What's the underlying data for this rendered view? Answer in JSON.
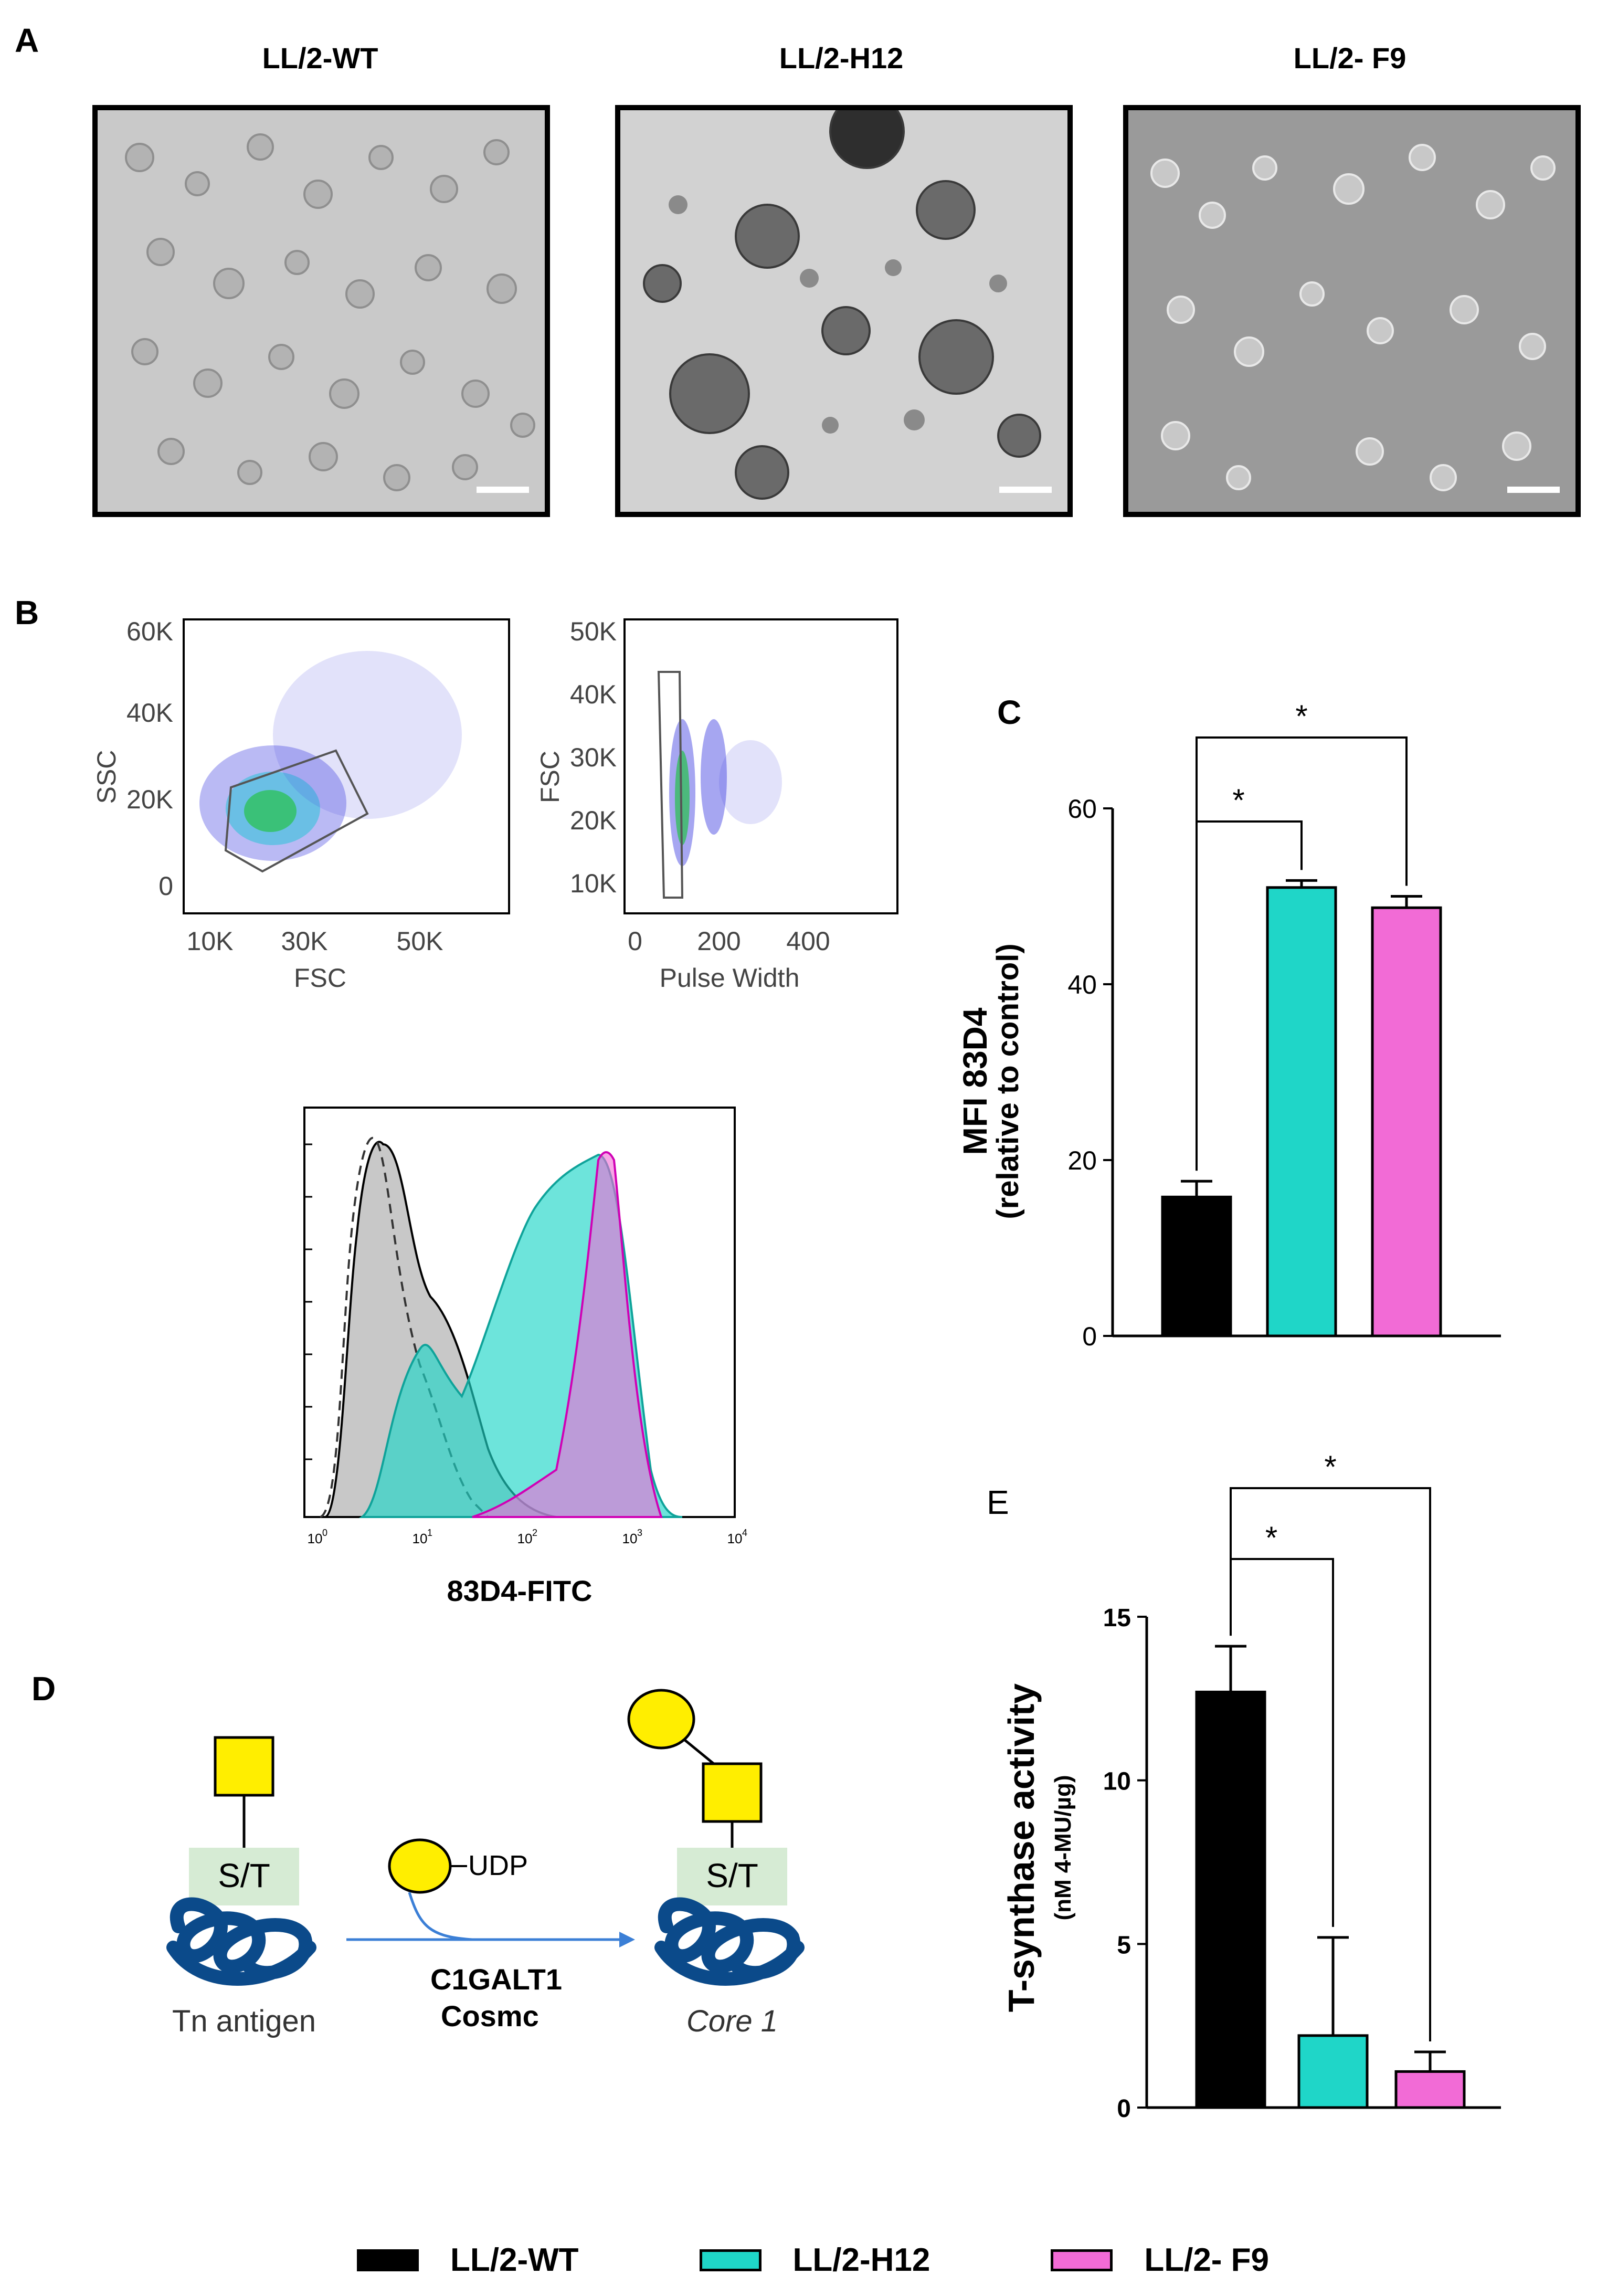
{
  "panels": {
    "a": "A",
    "b": "B",
    "c": "C",
    "d": "D",
    "e": "E"
  },
  "micrographs": [
    {
      "title": "LL/2-WT"
    },
    {
      "title": "LL/2-H12"
    },
    {
      "title": "LL/2- F9"
    }
  ],
  "flow": {
    "plot1": {
      "ylabel": "SSC",
      "xlabel": "FSC",
      "yticks": [
        "60K",
        "40K",
        "20K",
        "0"
      ],
      "xticks": [
        "10K",
        "30K",
        "50K"
      ]
    },
    "plot2": {
      "ylabel": "FSC",
      "xlabel": "Pulse Width",
      "yticks": [
        "50K",
        "40K",
        "30K",
        "20K",
        "10K"
      ],
      "xticks": [
        "0",
        "200",
        "400"
      ]
    },
    "histogram": {
      "xlabel": "83D4-FITC",
      "xticks": [
        "10",
        "10",
        "10",
        "10",
        "10"
      ],
      "exponents": [
        "0",
        "1",
        "2",
        "3",
        "4"
      ]
    }
  },
  "colors": {
    "wt": "#000000",
    "h12": "#1fd6c8",
    "f9": "#f26bd6",
    "yellow": "#ffee00",
    "protein": "#0b4a8a",
    "st_box": "#d6ebd4",
    "arrow": "#3b7fd6"
  },
  "chart_data": [
    {
      "id": "C",
      "type": "bar",
      "categories": [
        "LL/2-WT",
        "LL/2-H12",
        "LL/2- F9"
      ],
      "values": [
        15.8,
        51,
        48.7
      ],
      "errors": [
        1.8,
        0.8,
        1.3
      ],
      "ylabel_line1": "MFI 83D4",
      "ylabel_line2": "(relative to control)",
      "ylim": [
        0,
        60
      ],
      "yticks": [
        "0",
        "20",
        "40",
        "60"
      ],
      "significance": [
        "*",
        "*"
      ]
    },
    {
      "id": "E",
      "type": "bar",
      "categories": [
        "LL/2-WT",
        "LL/2-H12",
        "LL/2- F9"
      ],
      "values": [
        12.7,
        2.2,
        1.1
      ],
      "errors": [
        1.4,
        3.0,
        0.6
      ],
      "ylabel_line1": "T-synthase activity",
      "ylabel_line2": "(nM 4-MU/µg)",
      "ylim": [
        0,
        15
      ],
      "yticks": [
        "0",
        "5",
        "10",
        "15"
      ],
      "significance": [
        "*",
        "*"
      ]
    }
  ],
  "diagram": {
    "st_label": "S/T",
    "udp_label": "UDP",
    "enzyme1": "C1GALT1",
    "enzyme2": "Cosmc",
    "left_caption": "Tn antigen",
    "right_caption": "Core 1"
  },
  "legend": [
    {
      "label": "LL/2-WT",
      "color": "#000000"
    },
    {
      "label": "LL/2-H12",
      "color": "#1fd6c8"
    },
    {
      "label": "LL/2- F9",
      "color": "#f26bd6"
    }
  ]
}
